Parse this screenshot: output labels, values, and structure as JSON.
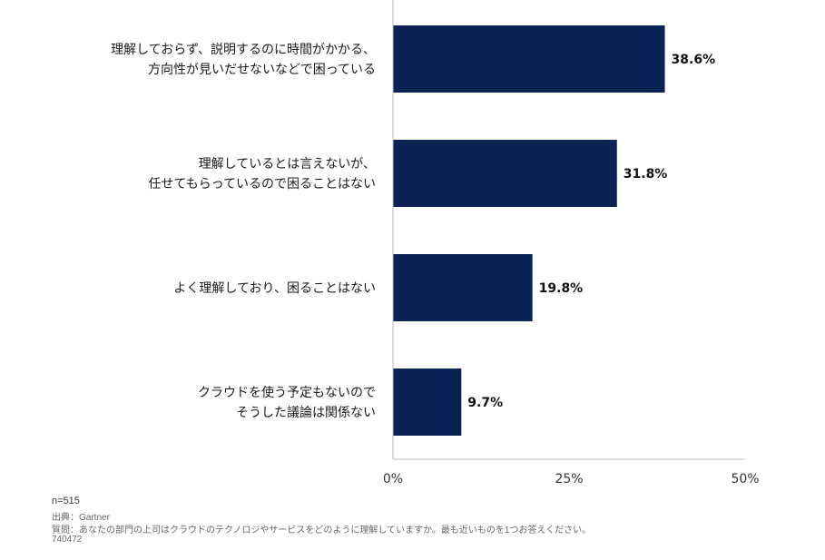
{
  "chart_data": {
    "type": "bar",
    "orientation": "horizontal",
    "categories": [
      [
        "理解しておらず、説明するのに時間がかかる、",
        "方向性が見いだせないなどで困っている"
      ],
      [
        "理解しているとは言えないが、",
        "任せてもらっているので困ることはない"
      ],
      [
        "よく理解しており、困ることはない"
      ],
      [
        "クラウドを使う予定もないので",
        "そうした議論は関係ない"
      ]
    ],
    "values": [
      38.6,
      31.8,
      19.8,
      9.7
    ],
    "value_labels": [
      "38.6%",
      "31.8%",
      "19.8%",
      "9.7%"
    ],
    "xlim": [
      0,
      50
    ],
    "xticks": [
      0,
      25,
      50
    ],
    "xtick_labels": [
      "0%",
      "25%",
      "50%"
    ],
    "bar_color": "#0a2254",
    "grid": false,
    "title": "",
    "xlabel": "",
    "ylabel": ""
  },
  "footer": {
    "n": "n=515",
    "source": "出典：Gartner",
    "question": "質問：あなたの部門の上司はクラウドのテクノロジやサービスをどのように理解していますか。最も近いものを1つお答えください。",
    "id": "740472"
  }
}
